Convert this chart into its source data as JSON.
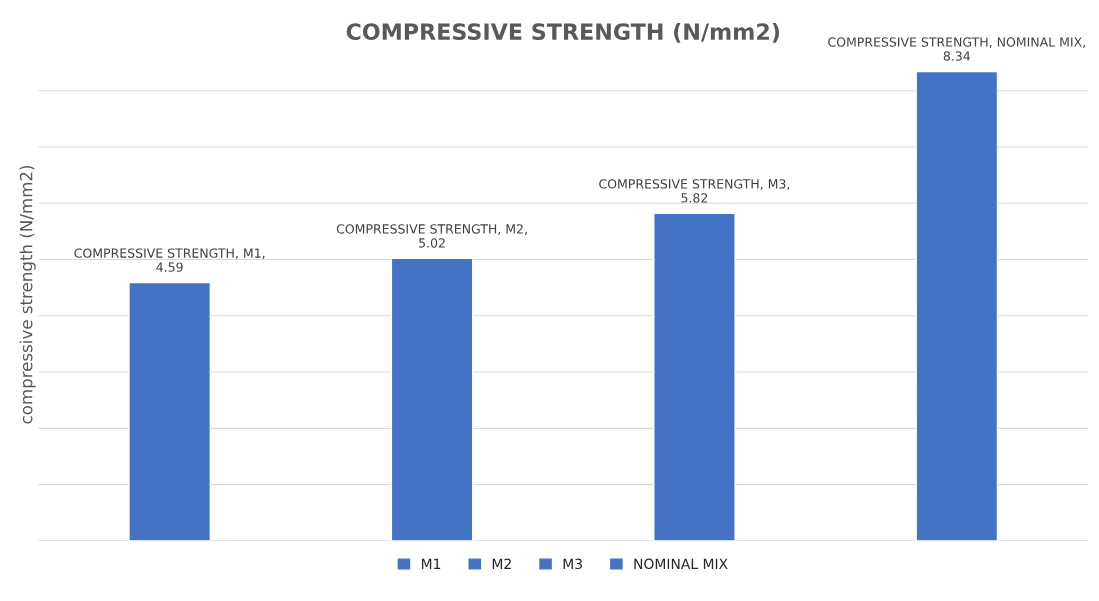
{
  "chart_data": {
    "type": "bar",
    "title": "COMPRESSIVE STRENGTH (N/mm2)",
    "ylabel": "compressive strength (N/mm2)",
    "categories": [
      null,
      null,
      null,
      null
    ],
    "stacked": true,
    "series": [
      {
        "name": "M1",
        "color": "#4472c4",
        "values": [
          4.59,
          null,
          null,
          null
        ],
        "value_labels": [
          "COMPRESSIVE STRENGTH, M1, 4.59",
          null,
          null,
          null
        ]
      },
      {
        "name": "M2",
        "color": "#4472c4",
        "values": [
          null,
          5.02,
          null,
          null
        ],
        "value_labels": [
          null,
          "COMPRESSIVE STRENGTH, M2, 5.02",
          null,
          null
        ]
      },
      {
        "name": "M3",
        "color": "#4472c4",
        "values": [
          null,
          null,
          5.82,
          null
        ],
        "value_labels": [
          null,
          null,
          "COMPRESSIVE STRENGTH, M3, 5.82",
          null
        ]
      },
      {
        "name": "NOMINAL MIX",
        "color": "#4472c4",
        "values": [
          null,
          null,
          null,
          8.34
        ],
        "value_labels": [
          null,
          null,
          null,
          "COMPRESSIVE STRENGTH, NOMINAL MIX, 8.34"
        ]
      }
    ],
    "grid": "y",
    "legend": "bottom",
    "tick_labels": false
  }
}
